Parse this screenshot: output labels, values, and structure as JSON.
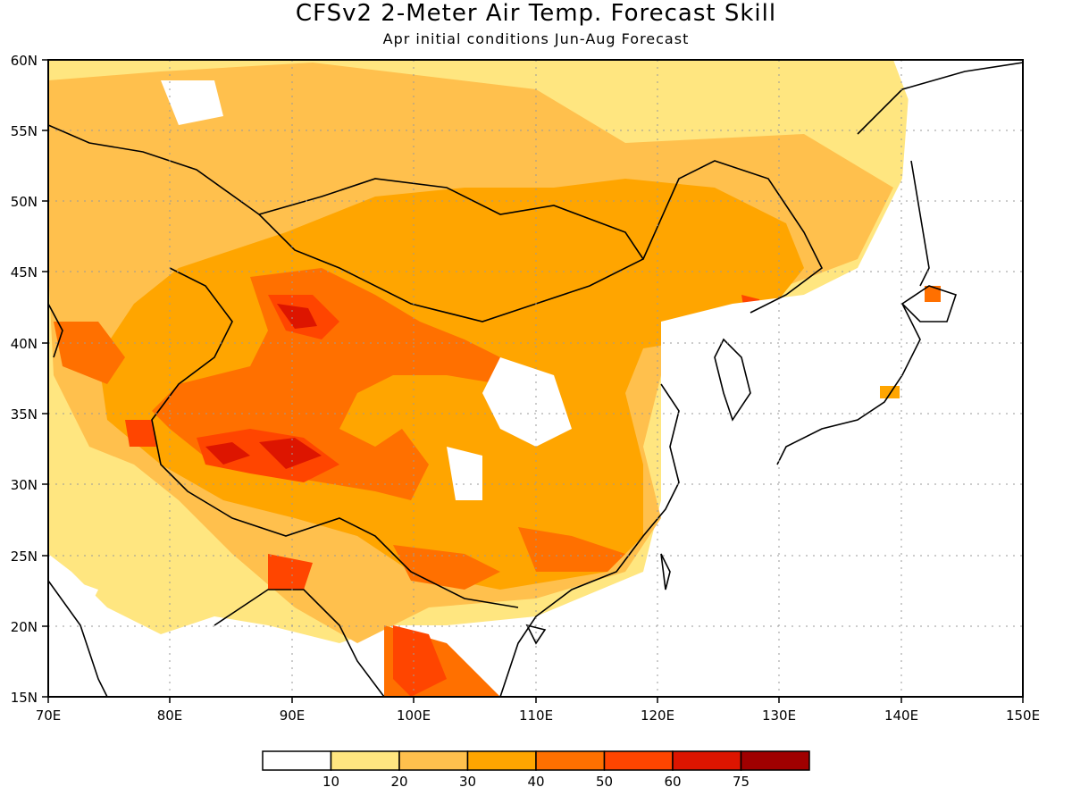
{
  "title": "CFSv2 2-Meter Air Temp. Forecast Skill",
  "subtitle": "Apr initial conditions  Jun-Aug Forecast",
  "map": {
    "lon_range": [
      70,
      150
    ],
    "lat_range": [
      15,
      60
    ],
    "lon_labels": [
      "70E",
      "80E",
      "90E",
      "100E",
      "110E",
      "120E",
      "130E",
      "140E",
      "150E"
    ],
    "lat_labels": [
      "15N",
      "20N",
      "25N",
      "30N",
      "35N",
      "40N",
      "45N",
      "50N",
      "55N",
      "60N"
    ],
    "gridlines": "dotted"
  },
  "colorbar": {
    "colors": [
      "#ffffff",
      "#ffe680",
      "#ffc04d",
      "#ffa500",
      "#ff7000",
      "#ff4500",
      "#dd1500",
      "#a00000"
    ],
    "labels": [
      "10",
      "20",
      "30",
      "40",
      "50",
      "60",
      "75"
    ]
  }
}
